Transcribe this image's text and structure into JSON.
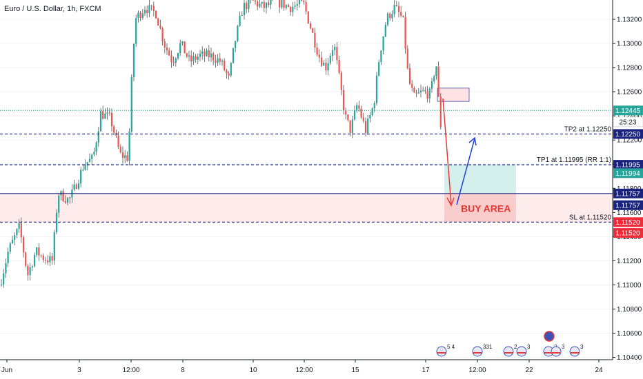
{
  "header": {
    "title": "Euro / U.S. Dollar, 1h, FXCM"
  },
  "colors": {
    "up": "#26a69a",
    "down": "#ef5350",
    "wick": "#555555",
    "blue_line": "#1a237e",
    "axis": "#131722",
    "grid": "#f0f3fa",
    "buy_zone": "#fde3e3",
    "target_zone": "#d4efec",
    "entry_box": "#fde3e3"
  },
  "chart_data": {
    "type": "candlestick",
    "x_ticks": [
      "Jun",
      "3",
      "12:00",
      "8",
      "10",
      "12:00",
      "15",
      "17",
      "12:00",
      "22",
      "24"
    ],
    "y_ticks": [
      "1.13200",
      "1.13000",
      "1.12800",
      "1.12600",
      "1.12400",
      "1.12200",
      "1.12000",
      "1.11800",
      "1.11600",
      "1.11400",
      "1.11200",
      "1.11000",
      "1.10800",
      "1.10600",
      "1.10400"
    ],
    "y_range": [
      1.1038,
      1.1336
    ],
    "price_tags": [
      {
        "text": "1.12445",
        "price": 1.12445,
        "style": "teal"
      },
      {
        "text": "25:23",
        "price": 1.1235,
        "style": "white"
      },
      {
        "text": "1.12250",
        "price": 1.1225,
        "style": "navy"
      },
      {
        "text": "1.11995",
        "price": 1.11995,
        "style": "navy"
      },
      {
        "text": "1.11994",
        "price": 1.11925,
        "style": "teal"
      },
      {
        "text": "1.11757",
        "price": 1.11757,
        "style": "navy"
      },
      {
        "text": "1.11757",
        "price": 1.1166,
        "style": "navy"
      },
      {
        "text": "1.11520",
        "price": 1.1152,
        "style": "red"
      },
      {
        "text": "1.11520",
        "price": 1.1143,
        "style": "red"
      }
    ],
    "levels": [
      {
        "label": "TP2 at 1.12250",
        "price": 1.1225,
        "style": "dashed"
      },
      {
        "label": "TP1 at 1.11995 (RR 1:1)",
        "price": 1.11995,
        "style": "dashed"
      },
      {
        "label": "",
        "price": 1.11757,
        "style": "solid"
      },
      {
        "label": "SL at 1.11520",
        "price": 1.1152,
        "style": "dashed"
      },
      {
        "label": "",
        "price": 1.12445,
        "style": "dotted-teal"
      }
    ],
    "buy_zone": {
      "label": "BUY AREA",
      "top": 1.11757,
      "bottom": 1.1152
    },
    "target_zone": {
      "top": 1.11995,
      "bottom": 1.11757
    },
    "entry_box": {
      "top": 1.1263,
      "bottom": 1.1252
    },
    "events": [
      {
        "text": "5 4"
      },
      {
        "text": "331"
      },
      {
        "text": "2"
      },
      {
        "text": "3"
      },
      {
        "text": "2"
      },
      {
        "text": "3"
      },
      {
        "text": "3"
      }
    ],
    "price_path": [
      [
        0,
        1.11
      ],
      [
        12,
        1.1128
      ],
      [
        28,
        1.1148
      ],
      [
        40,
        1.1108
      ],
      [
        52,
        1.1128
      ],
      [
        64,
        1.1122
      ],
      [
        76,
        1.112
      ],
      [
        84,
        1.1176
      ],
      [
        100,
        1.117
      ],
      [
        108,
        1.118
      ],
      [
        122,
        1.12
      ],
      [
        135,
        1.1205
      ],
      [
        146,
        1.1242
      ],
      [
        160,
        1.1238
      ],
      [
        174,
        1.1208
      ],
      [
        186,
        1.1205
      ],
      [
        190,
        1.126
      ],
      [
        196,
        1.132
      ],
      [
        210,
        1.133
      ],
      [
        226,
        1.1325
      ],
      [
        238,
        1.13
      ],
      [
        250,
        1.1285
      ],
      [
        262,
        1.13
      ],
      [
        275,
        1.1285
      ],
      [
        290,
        1.129
      ],
      [
        305,
        1.129
      ],
      [
        320,
        1.1285
      ],
      [
        332,
        1.127
      ],
      [
        340,
        1.13
      ],
      [
        352,
        1.133
      ],
      [
        366,
        1.1335
      ],
      [
        382,
        1.133
      ],
      [
        400,
        1.1335
      ],
      [
        420,
        1.133
      ],
      [
        440,
        1.1333
      ],
      [
        452,
        1.131
      ],
      [
        462,
        1.129
      ],
      [
        472,
        1.128
      ],
      [
        484,
        1.13
      ],
      [
        492,
        1.127
      ],
      [
        500,
        1.124
      ],
      [
        508,
        1.1228
      ],
      [
        518,
        1.125
      ],
      [
        530,
        1.1228
      ],
      [
        542,
        1.125
      ],
      [
        550,
        1.129
      ],
      [
        560,
        1.132
      ],
      [
        572,
        1.133
      ],
      [
        584,
        1.132
      ],
      [
        592,
        1.127
      ],
      [
        600,
        1.1255
      ],
      [
        612,
        1.126
      ],
      [
        624,
        1.1258
      ],
      [
        632,
        1.1285
      ],
      [
        636,
        1.125
      ],
      [
        640,
        1.1225
      ]
    ]
  }
}
